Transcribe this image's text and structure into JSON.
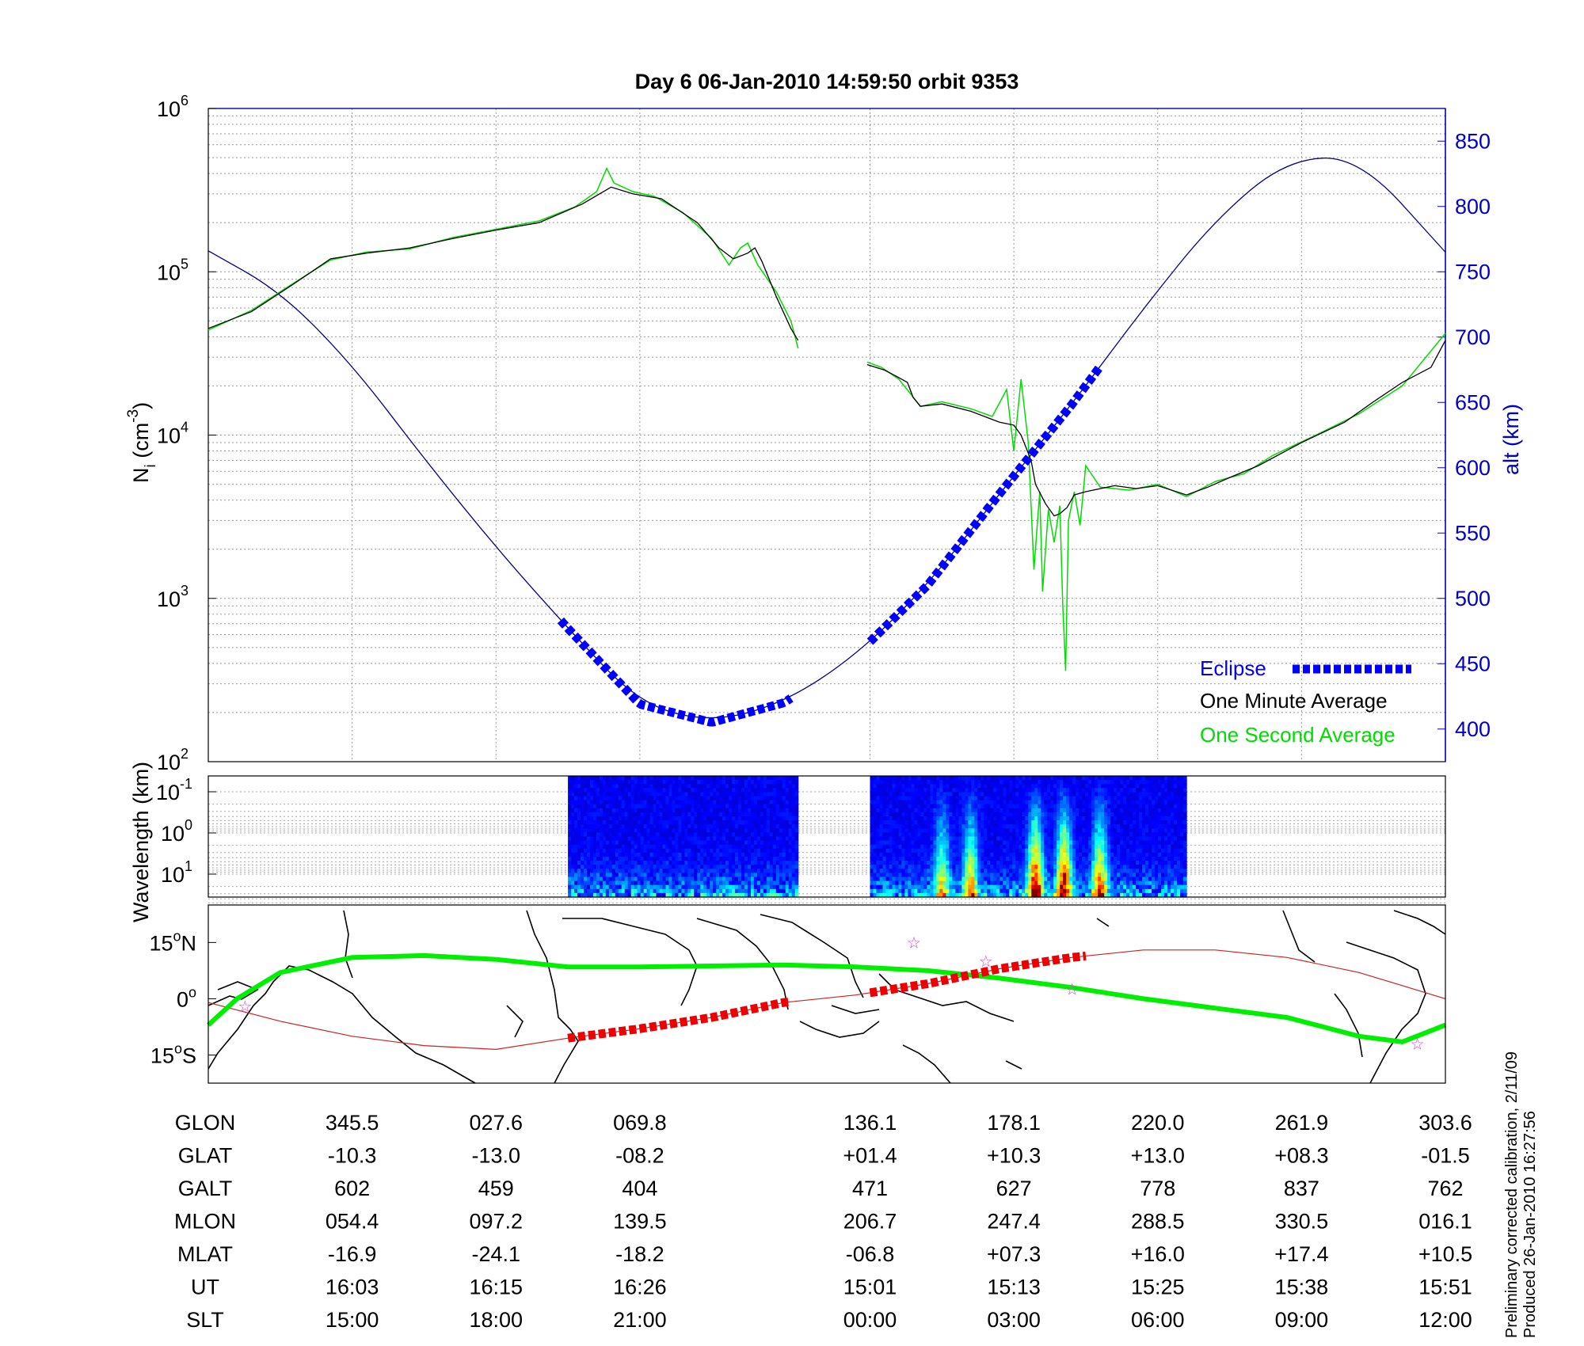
{
  "title": "Day 6  06-Jan-2010 14:59:50   orbit 9353",
  "colors": {
    "ni_avg": "#000000",
    "ni_sec": "#00dd00",
    "alt": "#00008b",
    "eclipse": "#0000ff",
    "axis_right": "#0000cc",
    "track": "#00ee00",
    "track_eclipse": "#ee0000",
    "track_thin": "#cc2222",
    "stars": "#cc44cc"
  },
  "chart_data": [
    {
      "type": "line",
      "panel": "density",
      "ylabel_main": "N",
      "ylabel_sub": "i",
      "ylabel_unit_pre": " (cm",
      "ylabel_unit_exp": "-3",
      "ylabel_unit_post": ")",
      "yscale": "log",
      "ylim": [
        100,
        1000000
      ],
      "yticks": [
        {
          "base": "10",
          "exp": "2",
          "v": 100
        },
        {
          "base": "10",
          "exp": "3",
          "v": 1000
        },
        {
          "base": "10",
          "exp": "4",
          "v": 10000
        },
        {
          "base": "10",
          "exp": "5",
          "v": 100000
        },
        {
          "base": "10",
          "exp": "6",
          "v": 1000000
        }
      ],
      "y2label": "alt (km)",
      "y2lim": [
        375,
        875
      ],
      "y2ticks": [
        "400",
        "450",
        "500",
        "550",
        "600",
        "650",
        "700",
        "750",
        "800",
        "850"
      ],
      "xlim": [
        0,
        8.6
      ],
      "legend": {
        "eclipse": "Eclipse",
        "avg": "One Minute Average",
        "sec": "One Second Average",
        "position": "bottom-right"
      },
      "series": [
        {
          "name": "One Minute Average",
          "segments": [
            [
              [
                0,
                45000
              ],
              [
                0.3,
                57000
              ],
              [
                0.6,
                85000
              ],
              [
                0.85,
                120000
              ],
              [
                1.1,
                130000
              ],
              [
                1.4,
                140000
              ],
              [
                1.7,
                160000
              ],
              [
                2.0,
                180000
              ],
              [
                2.3,
                200000
              ],
              [
                2.6,
                260000
              ],
              [
                2.8,
                330000
              ],
              [
                2.95,
                300000
              ],
              [
                3.15,
                280000
              ],
              [
                3.4,
                200000
              ],
              [
                3.55,
                140000
              ],
              [
                3.65,
                120000
              ],
              [
                3.75,
                130000
              ],
              [
                3.8,
                140000
              ],
              [
                3.85,
                115000
              ],
              [
                3.95,
                70000
              ],
              [
                4.05,
                45000
              ],
              [
                4.1,
                38000
              ]
            ],
            [
              [
                4.58,
                27000
              ],
              [
                4.7,
                25000
              ],
              [
                4.78,
                23000
              ],
              [
                4.86,
                21000
              ],
              [
                4.9,
                17000
              ],
              [
                4.95,
                15000
              ],
              [
                5.1,
                15500
              ],
              [
                5.3,
                14000
              ],
              [
                5.5,
                12000
              ],
              [
                5.6,
                11500
              ],
              [
                5.65,
                10000
              ],
              [
                5.72,
                7000
              ],
              [
                5.75,
                5000
              ],
              [
                5.82,
                3800
              ],
              [
                5.88,
                3200
              ],
              [
                5.92,
                3300
              ],
              [
                5.97,
                3600
              ],
              [
                6.02,
                4300
              ],
              [
                6.1,
                4500
              ],
              [
                6.3,
                4900
              ],
              [
                6.45,
                4700
              ],
              [
                6.6,
                4900
              ],
              [
                6.8,
                4300
              ],
              [
                6.95,
                4800
              ],
              [
                7.1,
                5500
              ],
              [
                7.3,
                6500
              ],
              [
                7.6,
                9000
              ],
              [
                7.9,
                12000
              ],
              [
                8.1,
                16000
              ],
              [
                8.3,
                21000
              ],
              [
                8.5,
                26000
              ],
              [
                8.6,
                38000
              ]
            ]
          ]
        },
        {
          "name": "One Second Average",
          "segments": [
            [
              [
                0,
                44000
              ],
              [
                0.3,
                58000
              ],
              [
                0.6,
                86000
              ],
              [
                0.85,
                118000
              ],
              [
                1.1,
                132000
              ],
              [
                1.4,
                138000
              ],
              [
                1.7,
                162000
              ],
              [
                2.0,
                182000
              ],
              [
                2.3,
                205000
              ],
              [
                2.55,
                250000
              ],
              [
                2.7,
                310000
              ],
              [
                2.77,
                430000
              ],
              [
                2.82,
                350000
              ],
              [
                2.95,
                310000
              ],
              [
                3.1,
                290000
              ],
              [
                3.3,
                230000
              ],
              [
                3.5,
                160000
              ],
              [
                3.62,
                110000
              ],
              [
                3.7,
                140000
              ],
              [
                3.75,
                150000
              ],
              [
                3.82,
                110000
              ],
              [
                3.95,
                75000
              ],
              [
                4.05,
                50000
              ],
              [
                4.1,
                34000
              ]
            ],
            [
              [
                4.58,
                28000
              ],
              [
                4.68,
                26000
              ],
              [
                4.8,
                22000
              ],
              [
                4.88,
                18000
              ],
              [
                4.95,
                15000
              ],
              [
                5.1,
                16000
              ],
              [
                5.3,
                14500
              ],
              [
                5.45,
                13000
              ],
              [
                5.55,
                19000
              ],
              [
                5.6,
                8000
              ],
              [
                5.65,
                22000
              ],
              [
                5.7,
                9000
              ],
              [
                5.74,
                1500
              ],
              [
                5.78,
                4500
              ],
              [
                5.8,
                1100
              ],
              [
                5.84,
                3500
              ],
              [
                5.88,
                2200
              ],
              [
                5.92,
                3700
              ],
              [
                5.94,
                900
              ],
              [
                5.96,
                360
              ],
              [
                5.98,
                3000
              ],
              [
                6.02,
                4500
              ],
              [
                6.06,
                2800
              ],
              [
                6.1,
                6500
              ],
              [
                6.2,
                4800
              ],
              [
                6.4,
                4600
              ],
              [
                6.6,
                5000
              ],
              [
                6.8,
                4200
              ],
              [
                7.0,
                5200
              ],
              [
                7.2,
                5800
              ],
              [
                7.4,
                7500
              ],
              [
                7.7,
                10000
              ],
              [
                8.0,
                13500
              ],
              [
                8.3,
                20000
              ],
              [
                8.6,
                42000
              ]
            ]
          ]
        },
        {
          "name": "alt (km)",
          "axis": "right",
          "x": [
            0,
            0.5,
            1.0,
            1.5,
            2.0,
            2.5,
            3.0,
            3.5,
            4.0,
            4.5,
            5.0,
            5.5,
            6.0,
            6.5,
            7.0,
            7.5,
            8.0,
            8.6
          ],
          "values": [
            766,
            735,
            679,
            607,
            539,
            477,
            419,
            405,
            420,
            456,
            510,
            580,
            648,
            722,
            790,
            836,
            838,
            765
          ]
        },
        {
          "name": "Eclipse",
          "axis": "right",
          "segments": [
            [
              2.5,
              411
            ],
            [
              4.1,
              447
            ]
          ],
          "segments2": [
            [
              4.6,
              457
            ],
            [
              6.2,
              706
            ]
          ]
        }
      ],
      "grid": true
    },
    {
      "type": "heatmap",
      "panel": "spectrogram",
      "ylabel": "Wavelength (km)",
      "yticks": [
        {
          "base": "10",
          "exp": "-1"
        },
        {
          "base": "10",
          "exp": "0"
        },
        {
          "base": "10",
          "exp": "1"
        }
      ],
      "blocks": [
        [
          2.5,
          4.1
        ],
        [
          4.6,
          6.8
        ]
      ],
      "hot_spots": [
        [
          5.1,
          0.6
        ],
        [
          5.3,
          0.7
        ],
        [
          5.75,
          1.0
        ],
        [
          5.95,
          1.0
        ],
        [
          6.2,
          0.8
        ]
      ]
    },
    {
      "type": "map",
      "panel": "ground-track",
      "yticks": [
        {
          "deg": "15",
          "sym": "o",
          "hem": "N"
        },
        {
          "deg": "0",
          "sym": "o",
          "hem": ""
        },
        {
          "deg": "15",
          "sym": "o",
          "hem": "S"
        }
      ],
      "track_lat": [
        [
          0,
          -7
        ],
        [
          0.2,
          0
        ],
        [
          0.5,
          7
        ],
        [
          1.0,
          11
        ],
        [
          1.5,
          11.5
        ],
        [
          2.0,
          10.5
        ],
        [
          2.5,
          8.5
        ],
        [
          3.0,
          8.5
        ],
        [
          4.0,
          9
        ],
        [
          4.5,
          8.5
        ],
        [
          5.0,
          7.5
        ],
        [
          5.5,
          5.5
        ],
        [
          6.0,
          3
        ],
        [
          6.5,
          0
        ],
        [
          7.0,
          -2.5
        ],
        [
          7.5,
          -5
        ],
        [
          8.0,
          -10
        ],
        [
          8.3,
          -11.5
        ],
        [
          8.6,
          -7
        ]
      ],
      "orbit_lat": [
        [
          0,
          -1
        ],
        [
          0.5,
          -6
        ],
        [
          1.0,
          -10
        ],
        [
          1.5,
          -12.5
        ],
        [
          2.0,
          -13.5
        ],
        [
          2.5,
          -10.5
        ],
        [
          3.0,
          -8
        ],
        [
          3.5,
          -5
        ],
        [
          4.0,
          -1
        ],
        [
          4.5,
          1
        ],
        [
          5.0,
          4
        ],
        [
          5.5,
          8
        ],
        [
          6.0,
          11
        ],
        [
          6.5,
          13
        ],
        [
          7.0,
          13
        ],
        [
          7.5,
          11
        ],
        [
          8.0,
          7
        ],
        [
          8.6,
          0
        ]
      ],
      "stars": [
        [
          0.25,
          -2
        ],
        [
          4.9,
          15
        ],
        [
          5.4,
          10
        ],
        [
          6.0,
          2.5
        ],
        [
          8.4,
          -12
        ]
      ]
    }
  ],
  "table": {
    "rows": [
      {
        "label": "GLON",
        "values": [
          "345.5",
          "027.6",
          "069.8",
          "136.1",
          "178.1",
          "220.0",
          "261.9",
          "303.6"
        ]
      },
      {
        "label": "GLAT",
        "values": [
          "-10.3",
          "-13.0",
          "-08.2",
          "+01.4",
          "+10.3",
          "+13.0",
          "+08.3",
          "-01.5"
        ]
      },
      {
        "label": "GALT",
        "values": [
          "602",
          "459",
          "404",
          "471",
          "627",
          "778",
          "837",
          "762"
        ]
      },
      {
        "label": "MLON",
        "values": [
          "054.4",
          "097.2",
          "139.5",
          "206.7",
          "247.4",
          "288.5",
          "330.5",
          "016.1"
        ]
      },
      {
        "label": "MLAT",
        "values": [
          "-16.9",
          "-24.1",
          "-18.2",
          "-06.8",
          "+07.3",
          "+16.0",
          "+17.4",
          "+10.5"
        ]
      },
      {
        "label": "UT",
        "values": [
          "16:03",
          "16:15",
          "16:26",
          "15:01",
          "15:13",
          "15:25",
          "15:38",
          "15:51"
        ]
      },
      {
        "label": "SLT",
        "values": [
          "15:00",
          "18:00",
          "21:00",
          "00:00",
          "03:00",
          "06:00",
          "09:00",
          "12:00"
        ]
      }
    ],
    "columns_x": [
      1,
      2,
      3,
      4.6,
      5.6,
      6.6,
      7.6,
      8.6
    ]
  },
  "side_note": {
    "line1": "Preliminary corrected calibration, 2/11/09",
    "line2": "Produced 26-Jan-2010 16:27:56"
  }
}
